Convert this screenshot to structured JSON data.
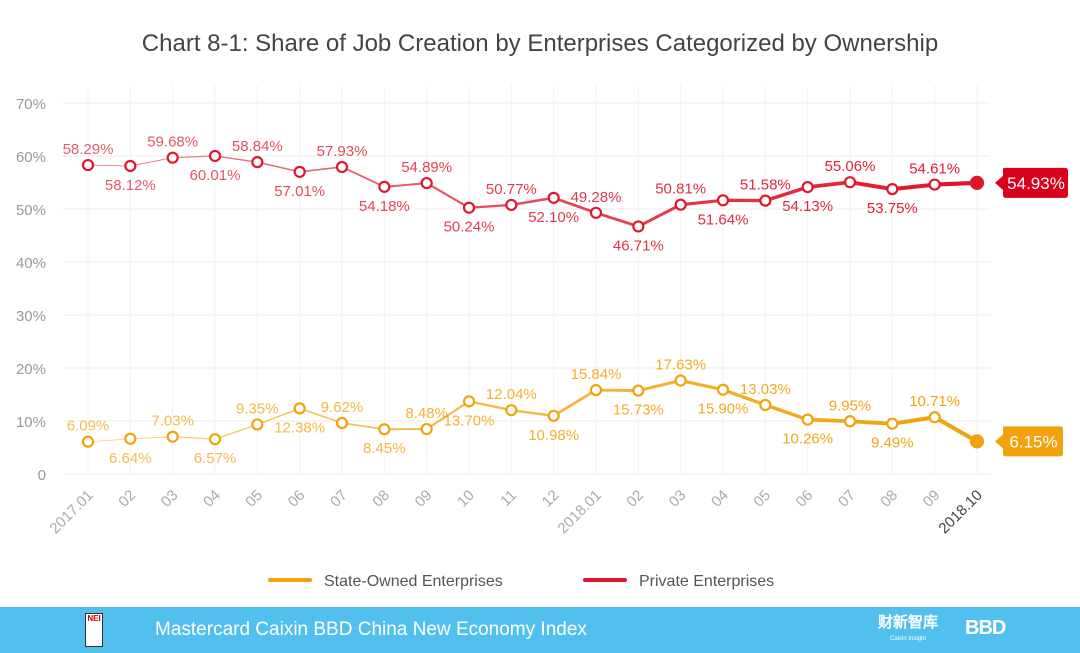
{
  "chart_data": {
    "type": "line",
    "title": "Chart 8-1: Share of Job Creation by Enterprises Categorized by Ownership",
    "xlabel": "",
    "ylabel": "",
    "ylim": [
      0,
      70
    ],
    "yticks": [
      "0",
      "10%",
      "20%",
      "30%",
      "40%",
      "50%",
      "60%",
      "70%"
    ],
    "categories": [
      "2017.01",
      "02",
      "03",
      "04",
      "05",
      "06",
      "07",
      "08",
      "09",
      "10",
      "11",
      "12",
      "2018.01",
      "02",
      "03",
      "04",
      "05",
      "06",
      "07",
      "08",
      "09",
      "2018.10"
    ],
    "series": [
      {
        "name": "State-Owned Enterprises",
        "color": "#f0a30a",
        "values": [
          6.09,
          6.64,
          7.03,
          6.57,
          9.35,
          12.38,
          9.62,
          8.45,
          8.48,
          13.7,
          12.04,
          10.98,
          15.84,
          15.73,
          17.63,
          15.9,
          13.03,
          10.26,
          9.95,
          9.49,
          10.71,
          6.15
        ],
        "labels": [
          "6.09%",
          "6.64%",
          "7.03%",
          "6.57%",
          "9.35%",
          "12.38%",
          "9.62%",
          "8.45%",
          "8.48%",
          "13.70%",
          "12.04%",
          "10.98%",
          "15.84%",
          "15.73%",
          "17.63%",
          "15.90%",
          "13.03%",
          "10.26%",
          "9.95%",
          "9.49%",
          "10.71%",
          "6.15%"
        ]
      },
      {
        "name": "Private Enterprises",
        "color": "#e0162b",
        "values": [
          58.29,
          58.12,
          59.68,
          60.01,
          58.84,
          57.01,
          57.93,
          54.18,
          54.89,
          50.24,
          50.77,
          52.1,
          49.28,
          46.71,
          50.81,
          51.64,
          51.58,
          54.13,
          55.06,
          53.75,
          54.61,
          54.93
        ],
        "labels": [
          "58.29%",
          "58.12%",
          "59.68%",
          "60.01%",
          "58.84%",
          "57.01%",
          "57.93%",
          "54.18%",
          "54.89%",
          "50.24%",
          "50.77%",
          "52.10%",
          "49.28%",
          "46.71%",
          "50.81%",
          "51.64%",
          "51.58%",
          "54.13%",
          "55.06%",
          "53.75%",
          "54.61%",
          "54.93%"
        ]
      }
    ],
    "grid": true,
    "legend": "bottom"
  },
  "footer": {
    "text": "Mastercard Caixin BBD China New Economy Index",
    "logo_nei": "NEI",
    "logo_caixin": "财新智库",
    "logo_caixin_sub": "Caixin Insight",
    "logo_bbd": "BBD"
  }
}
